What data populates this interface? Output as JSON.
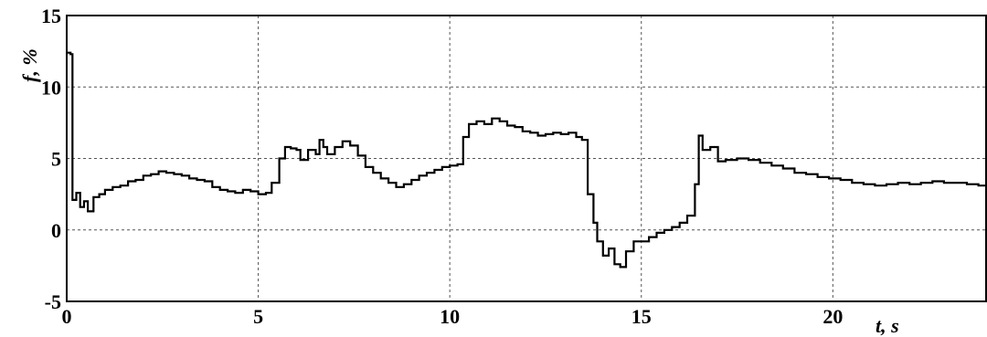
{
  "chart_data": {
    "type": "line",
    "xlabel": "t, s",
    "ylabel": "f, %",
    "xlim": [
      0,
      24
    ],
    "ylim": [
      -5,
      15
    ],
    "x_ticks": [
      0,
      5,
      10,
      15,
      20
    ],
    "y_ticks": [
      -5,
      0,
      5,
      10,
      15
    ],
    "x_tick_labels": [
      "0",
      "5",
      "10",
      "15",
      "20"
    ],
    "y_tick_labels": [
      "-5",
      "0",
      "5",
      "10",
      "15"
    ],
    "grid": true,
    "line_style": "step",
    "series": [
      {
        "points": [
          [
            0.0,
            12.4
          ],
          [
            0.1,
            12.3
          ],
          [
            0.15,
            2.1
          ],
          [
            0.25,
            2.6
          ],
          [
            0.35,
            1.6
          ],
          [
            0.45,
            2.0
          ],
          [
            0.55,
            1.3
          ],
          [
            0.7,
            2.3
          ],
          [
            0.85,
            2.5
          ],
          [
            1.0,
            2.8
          ],
          [
            1.2,
            3.0
          ],
          [
            1.4,
            3.1
          ],
          [
            1.6,
            3.4
          ],
          [
            1.8,
            3.5
          ],
          [
            2.0,
            3.8
          ],
          [
            2.2,
            3.9
          ],
          [
            2.4,
            4.1
          ],
          [
            2.6,
            4.0
          ],
          [
            2.8,
            3.9
          ],
          [
            3.0,
            3.8
          ],
          [
            3.2,
            3.6
          ],
          [
            3.4,
            3.5
          ],
          [
            3.6,
            3.4
          ],
          [
            3.8,
            3.0
          ],
          [
            4.0,
            2.8
          ],
          [
            4.2,
            2.7
          ],
          [
            4.4,
            2.6
          ],
          [
            4.6,
            2.8
          ],
          [
            4.8,
            2.7
          ],
          [
            5.0,
            2.5
          ],
          [
            5.2,
            2.6
          ],
          [
            5.35,
            3.3
          ],
          [
            5.55,
            5.0
          ],
          [
            5.7,
            5.8
          ],
          [
            5.85,
            5.7
          ],
          [
            6.0,
            5.6
          ],
          [
            6.1,
            4.9
          ],
          [
            6.3,
            5.6
          ],
          [
            6.5,
            5.3
          ],
          [
            6.6,
            6.3
          ],
          [
            6.7,
            5.8
          ],
          [
            6.8,
            5.3
          ],
          [
            7.0,
            5.8
          ],
          [
            7.2,
            6.2
          ],
          [
            7.4,
            5.9
          ],
          [
            7.6,
            5.2
          ],
          [
            7.8,
            4.4
          ],
          [
            8.0,
            4.0
          ],
          [
            8.2,
            3.6
          ],
          [
            8.4,
            3.3
          ],
          [
            8.6,
            3.0
          ],
          [
            8.8,
            3.2
          ],
          [
            9.0,
            3.5
          ],
          [
            9.2,
            3.8
          ],
          [
            9.4,
            4.0
          ],
          [
            9.6,
            4.2
          ],
          [
            9.8,
            4.4
          ],
          [
            10.0,
            4.5
          ],
          [
            10.2,
            4.6
          ],
          [
            10.35,
            6.5
          ],
          [
            10.5,
            7.4
          ],
          [
            10.7,
            7.6
          ],
          [
            10.9,
            7.4
          ],
          [
            11.1,
            7.8
          ],
          [
            11.3,
            7.6
          ],
          [
            11.5,
            7.3
          ],
          [
            11.7,
            7.2
          ],
          [
            11.9,
            6.9
          ],
          [
            12.1,
            6.8
          ],
          [
            12.3,
            6.6
          ],
          [
            12.5,
            6.7
          ],
          [
            12.7,
            6.8
          ],
          [
            12.9,
            6.7
          ],
          [
            13.1,
            6.8
          ],
          [
            13.3,
            6.5
          ],
          [
            13.45,
            6.3
          ],
          [
            13.6,
            2.5
          ],
          [
            13.75,
            0.5
          ],
          [
            13.85,
            -0.8
          ],
          [
            14.0,
            -1.8
          ],
          [
            14.15,
            -1.3
          ],
          [
            14.3,
            -2.4
          ],
          [
            14.45,
            -2.6
          ],
          [
            14.6,
            -1.5
          ],
          [
            14.8,
            -0.8
          ],
          [
            15.0,
            -0.8
          ],
          [
            15.2,
            -0.5
          ],
          [
            15.4,
            -0.2
          ],
          [
            15.6,
            0.0
          ],
          [
            15.8,
            0.2
          ],
          [
            16.0,
            0.5
          ],
          [
            16.2,
            1.0
          ],
          [
            16.4,
            3.2
          ],
          [
            16.5,
            6.6
          ],
          [
            16.6,
            5.6
          ],
          [
            16.8,
            5.8
          ],
          [
            17.0,
            4.8
          ],
          [
            17.2,
            4.9
          ],
          [
            17.5,
            5.0
          ],
          [
            17.8,
            4.9
          ],
          [
            18.1,
            4.7
          ],
          [
            18.4,
            4.5
          ],
          [
            18.7,
            4.3
          ],
          [
            19.0,
            4.0
          ],
          [
            19.3,
            3.9
          ],
          [
            19.6,
            3.7
          ],
          [
            19.9,
            3.6
          ],
          [
            20.2,
            3.5
          ],
          [
            20.5,
            3.3
          ],
          [
            20.8,
            3.2
          ],
          [
            21.1,
            3.1
          ],
          [
            21.4,
            3.2
          ],
          [
            21.7,
            3.3
          ],
          [
            22.0,
            3.2
          ],
          [
            22.3,
            3.3
          ],
          [
            22.6,
            3.4
          ],
          [
            22.9,
            3.3
          ],
          [
            23.2,
            3.3
          ],
          [
            23.5,
            3.2
          ],
          [
            23.8,
            3.1
          ],
          [
            24.0,
            3.1
          ]
        ]
      }
    ]
  }
}
